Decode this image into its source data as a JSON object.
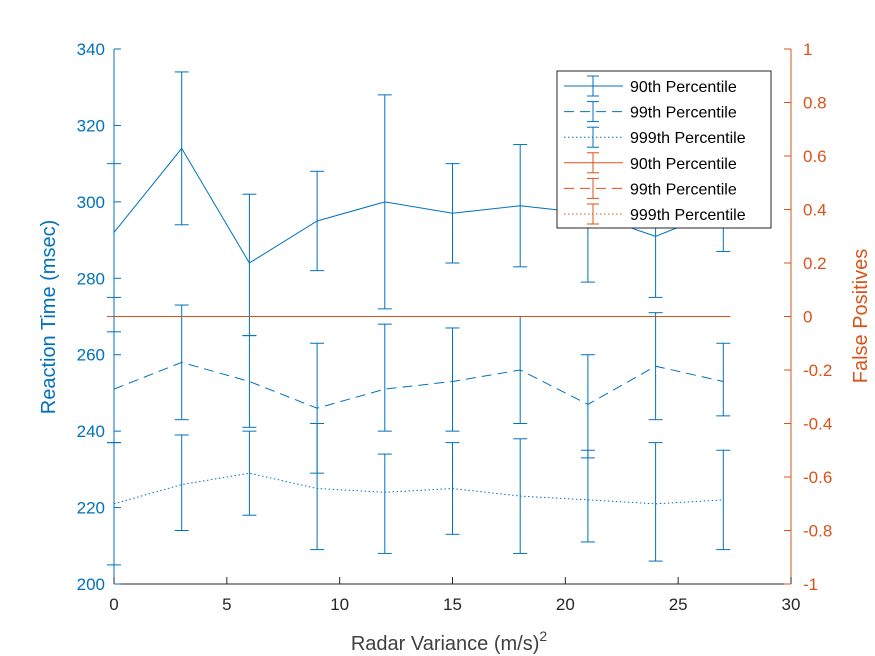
{
  "chart_data": {
    "type": "line",
    "xlabel": "Radar Variance (m/s)",
    "xlabel_superscript": "2",
    "ylabel_left": "Reaction Time (msec)",
    "ylabel_right": "False Positives",
    "xlim": [
      0,
      30
    ],
    "ylim_left": [
      200,
      340
    ],
    "ylim_right": [
      -1,
      1
    ],
    "x_ticks": [
      "0",
      "5",
      "10",
      "15",
      "20",
      "25",
      "30"
    ],
    "y_left_ticks": [
      "200",
      "220",
      "240",
      "260",
      "280",
      "300",
      "320",
      "340"
    ],
    "y_right_ticks": [
      "-1",
      "-0.8",
      "-0.6",
      "-0.4",
      "-0.2",
      "0",
      "0.2",
      "0.4",
      "0.6",
      "0.8",
      "1"
    ],
    "grid": false,
    "legend_position": "top-right",
    "colors": {
      "left": "#0072BD",
      "right": "#D95319"
    },
    "x": [
      0,
      3,
      6,
      9,
      12,
      15,
      18,
      21,
      24,
      27
    ],
    "series": [
      {
        "name": "90th Percentile",
        "axis": "left",
        "style": "solid",
        "values": [
          292,
          314,
          284,
          295,
          300,
          297,
          299,
          297,
          291,
          298
        ],
        "err_low": [
          275,
          294,
          265,
          282,
          272,
          284,
          283,
          279,
          275,
          287
        ],
        "err_high": [
          310,
          334,
          302,
          308,
          328,
          310,
          315,
          310,
          303,
          307
        ]
      },
      {
        "name": "99th Percentile",
        "axis": "left",
        "style": "dashed",
        "values": [
          251,
          258,
          253,
          246,
          251,
          253,
          256,
          247,
          257,
          253
        ],
        "err_low": [
          237,
          243,
          241,
          229,
          240,
          240,
          242,
          233,
          243,
          244
        ],
        "err_high": [
          266,
          273,
          265,
          263,
          268,
          267,
          270,
          260,
          271,
          263
        ]
      },
      {
        "name": "999th Percentile",
        "axis": "left",
        "style": "dotted",
        "values": [
          221,
          226,
          229,
          225,
          224,
          225,
          223,
          222,
          221,
          222
        ],
        "err_low": [
          205,
          214,
          218,
          209,
          208,
          213,
          208,
          211,
          206,
          209
        ],
        "err_high": [
          237,
          239,
          240,
          242,
          234,
          237,
          238,
          235,
          237,
          235
        ]
      },
      {
        "name": "90th Percentile",
        "axis": "right",
        "style": "solid",
        "values": [
          0,
          0,
          0,
          0,
          0,
          0,
          0,
          0,
          0,
          0
        ],
        "err_low": [
          0,
          0,
          0,
          0,
          0,
          0,
          0,
          0,
          0,
          0
        ],
        "err_high": [
          0,
          0,
          0,
          0,
          0,
          0,
          0,
          0,
          0,
          0
        ]
      },
      {
        "name": "99th Percentile",
        "axis": "right",
        "style": "dashed",
        "values": [
          0,
          0,
          0,
          0,
          0,
          0,
          0,
          0,
          0,
          0
        ],
        "err_low": [
          0,
          0,
          0,
          0,
          0,
          0,
          0,
          0,
          0,
          0
        ],
        "err_high": [
          0,
          0,
          0,
          0,
          0,
          0,
          0,
          0,
          0,
          0
        ]
      },
      {
        "name": "999th Percentile",
        "axis": "right",
        "style": "dotted",
        "values": [
          0,
          0,
          0,
          0,
          0,
          0,
          0,
          0,
          0,
          0
        ],
        "err_low": [
          0,
          0,
          0,
          0,
          0,
          0,
          0,
          0,
          0,
          0
        ],
        "err_high": [
          0,
          0,
          0,
          0,
          0,
          0,
          0,
          0,
          0,
          0
        ]
      }
    ]
  }
}
